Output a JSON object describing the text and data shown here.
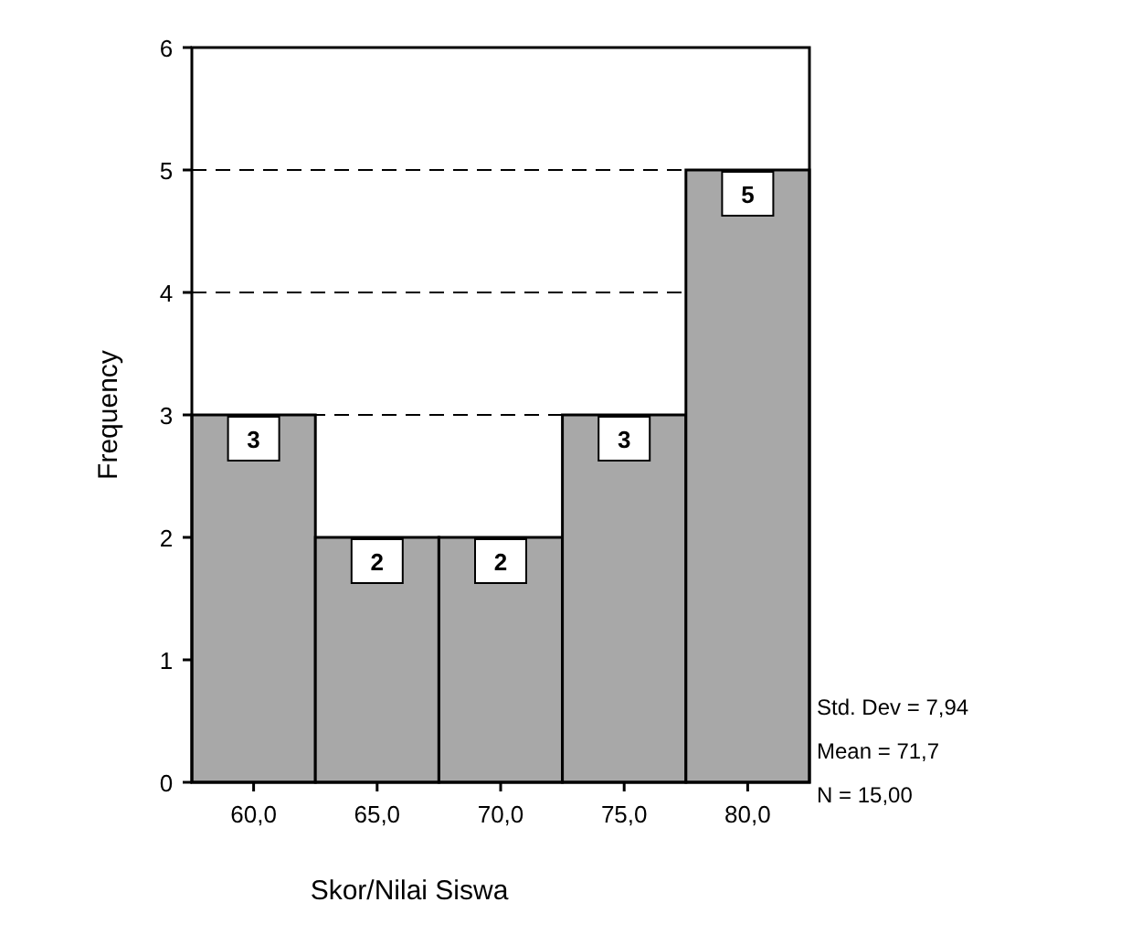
{
  "chart_data": {
    "type": "histogram",
    "xlabel": "Skor/Nilai Siswa",
    "ylabel": "Frequency",
    "bins": [
      57.5,
      62.5,
      67.5,
      72.5,
      77.5,
      82.5
    ],
    "values": [
      3,
      2,
      2,
      3,
      5
    ],
    "color": "#a8a8a8",
    "xlim": [
      57.5,
      82.5
    ],
    "xticks": [
      {
        "value": 60,
        "label": "60,0"
      },
      {
        "value": 65,
        "label": "65,0"
      },
      {
        "value": 70,
        "label": "70,0"
      },
      {
        "value": 75,
        "label": "75,0"
      },
      {
        "value": 80,
        "label": "80,0"
      }
    ],
    "ylim": [
      0,
      6
    ],
    "yticks": [
      0,
      1,
      2,
      3,
      4,
      5,
      6
    ],
    "grid": "y",
    "line_style": "dashed",
    "data_labels": true,
    "annotations": [
      "Std. Dev = 7,94",
      "Mean = 71,7",
      "N = 15,00"
    ]
  }
}
